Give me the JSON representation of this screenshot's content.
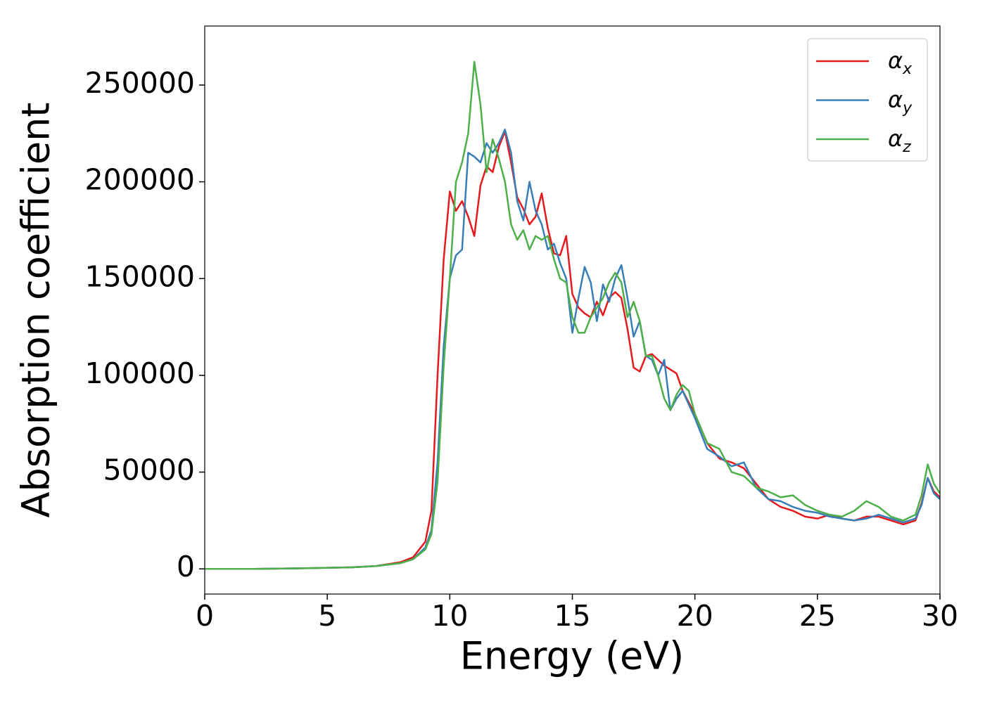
{
  "chart_data": {
    "type": "line",
    "x_label": "Energy (eV)",
    "y_label": "Absorption coefficient",
    "x": [
      0,
      2,
      4,
      6,
      7,
      8,
      8.5,
      9,
      9.25,
      9.5,
      9.75,
      10,
      10.25,
      10.5,
      10.75,
      11,
      11.25,
      11.5,
      11.75,
      12,
      12.25,
      12.5,
      12.75,
      13,
      13.25,
      13.5,
      13.75,
      14,
      14.25,
      14.5,
      14.75,
      15,
      15.25,
      15.5,
      15.75,
      16,
      16.25,
      16.5,
      16.75,
      17,
      17.25,
      17.5,
      17.75,
      18,
      18.25,
      18.5,
      18.75,
      19,
      19.25,
      19.5,
      19.75,
      20,
      20.5,
      21,
      21.5,
      22,
      22.5,
      23,
      23.5,
      24,
      24.5,
      25,
      25.5,
      26,
      26.5,
      27,
      27.5,
      28,
      28.5,
      29,
      29.25,
      29.5,
      29.75,
      30
    ],
    "series": [
      {
        "name": "αx",
        "color": "#e41a1c",
        "values": [
          0,
          0,
          300,
          800,
          1500,
          3500,
          6000,
          14000,
          30000,
          100000,
          160000,
          195000,
          185000,
          190000,
          182000,
          172000,
          198000,
          208000,
          205000,
          218000,
          226000,
          210000,
          192000,
          186000,
          178000,
          182000,
          194000,
          176000,
          163000,
          162000,
          172000,
          142000,
          135000,
          132000,
          130000,
          138000,
          131000,
          140000,
          143000,
          140000,
          124000,
          104000,
          102000,
          110000,
          111000,
          108000,
          105000,
          103000,
          101000,
          92000,
          86000,
          80000,
          65000,
          57000,
          55000,
          52000,
          44000,
          36000,
          32000,
          30000,
          27000,
          26000,
          28000,
          26000,
          25000,
          27000,
          27000,
          25000,
          23000,
          25000,
          34000,
          47000,
          40000,
          37000
        ]
      },
      {
        "name": "αy",
        "color": "#377eb8",
        "values": [
          0,
          0,
          300,
          800,
          1500,
          3000,
          5000,
          11000,
          20000,
          55000,
          115000,
          150000,
          162000,
          165000,
          215000,
          213000,
          210000,
          220000,
          215000,
          220000,
          227000,
          215000,
          190000,
          180000,
          200000,
          185000,
          178000,
          165000,
          168000,
          158000,
          150000,
          122000,
          140000,
          156000,
          148000,
          128000,
          147000,
          138000,
          150000,
          157000,
          140000,
          120000,
          128000,
          110000,
          108000,
          100000,
          108000,
          82000,
          88000,
          92000,
          85000,
          78000,
          62000,
          58000,
          53000,
          55000,
          42000,
          36000,
          35000,
          32000,
          30000,
          29000,
          27000,
          26000,
          25000,
          26000,
          28000,
          26000,
          24000,
          26000,
          33000,
          47000,
          39000,
          36000
        ]
      },
      {
        "name": "αz",
        "color": "#4daf4a",
        "values": [
          0,
          0,
          300,
          800,
          1500,
          3000,
          5000,
          10000,
          18000,
          45000,
          105000,
          150000,
          200000,
          210000,
          225000,
          262000,
          240000,
          205000,
          222000,
          212000,
          200000,
          178000,
          170000,
          175000,
          165000,
          172000,
          170000,
          172000,
          160000,
          150000,
          148000,
          130000,
          122000,
          122000,
          130000,
          135000,
          140000,
          148000,
          153000,
          148000,
          130000,
          138000,
          128000,
          110000,
          110000,
          100000,
          88000,
          82000,
          90000,
          95000,
          92000,
          80000,
          65000,
          62000,
          50000,
          48000,
          42000,
          40000,
          37000,
          38000,
          33000,
          30000,
          28000,
          27000,
          30000,
          35000,
          32000,
          27000,
          25000,
          28000,
          38000,
          54000,
          44000,
          39000
        ]
      }
    ],
    "xlim": [
      0,
      30
    ],
    "xticks": [
      0,
      5,
      10,
      15,
      20,
      25,
      30
    ],
    "ylim": [
      -13000,
      280500
    ],
    "yticks": [
      0,
      50000,
      100000,
      150000,
      200000,
      250000
    ],
    "legend": "upper right"
  }
}
